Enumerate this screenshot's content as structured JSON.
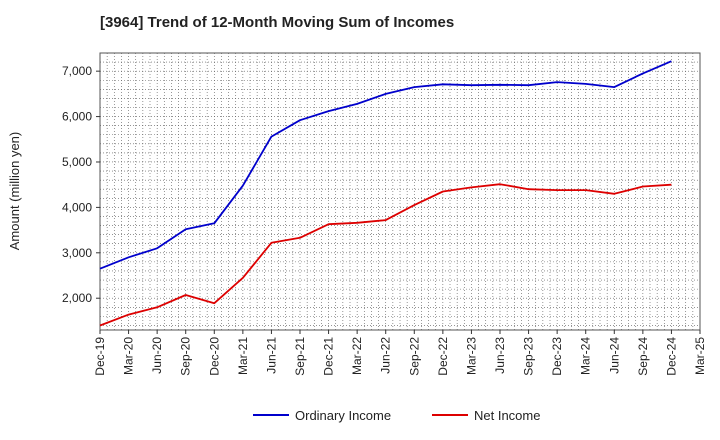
{
  "chart_data": {
    "type": "line",
    "title": "[3964]  Trend of 12-Month Moving Sum of Incomes",
    "xlabel": "",
    "ylabel": "Amount (million yen)",
    "ylim": [
      1300,
      7400
    ],
    "yticks": [
      2000,
      3000,
      4000,
      5000,
      6000,
      7000
    ],
    "ytick_labels": [
      "2,000",
      "3,000",
      "4,000",
      "5,000",
      "6,000",
      "7,000"
    ],
    "categories": [
      "Dec-19",
      "Mar-20",
      "Jun-20",
      "Sep-20",
      "Dec-20",
      "Mar-21",
      "Jun-21",
      "Sep-21",
      "Dec-21",
      "Mar-22",
      "Jun-22",
      "Sep-22",
      "Dec-22",
      "Mar-23",
      "Jun-23",
      "Sep-23",
      "Dec-23",
      "Mar-24",
      "Jun-24",
      "Sep-24",
      "Dec-24",
      "Mar-25"
    ],
    "grid": true,
    "legend_position": "bottom-center",
    "series": [
      {
        "name": "Ordinary Income",
        "color": "#0000cc",
        "values": [
          2650,
          2900,
          3100,
          3520,
          3650,
          4480,
          5560,
          5920,
          6120,
          6280,
          6500,
          6650,
          6710,
          6690,
          6700,
          6690,
          6760,
          6720,
          6650,
          6950,
          7220,
          null
        ]
      },
      {
        "name": "Net Income",
        "color": "#dd0000",
        "values": [
          1400,
          1640,
          1800,
          2070,
          1890,
          2450,
          3220,
          3330,
          3630,
          3660,
          3720,
          4050,
          4350,
          4440,
          4510,
          4400,
          4380,
          4380,
          4300,
          4460,
          4500,
          null
        ]
      }
    ]
  }
}
